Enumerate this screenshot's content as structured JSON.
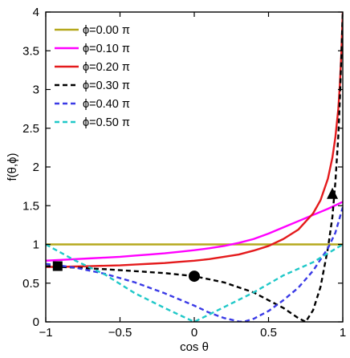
{
  "chart_data": {
    "type": "line",
    "xlabel": "cos θ",
    "ylabel": "f(θ,ϕ)",
    "xlim": [
      -1,
      1
    ],
    "ylim": [
      0,
      4
    ],
    "x_ticks": [
      -1,
      -0.5,
      0,
      0.5,
      1
    ],
    "x_tick_labels": [
      "−1",
      "−0.5",
      "0",
      "0.5",
      "1"
    ],
    "y_ticks": [
      0,
      0.5,
      1,
      1.5,
      2,
      2.5,
      3,
      3.5,
      4
    ],
    "y_tick_labels": [
      "0",
      "0.5",
      "1",
      "1.5",
      "2",
      "2.5",
      "3",
      "3.5",
      "4"
    ],
    "legend_position": "top-left",
    "grid": false,
    "series": [
      {
        "name": "ϕ=0.00 π",
        "color": "#b5a81d",
        "dash": "solid",
        "x": [
          -1,
          1
        ],
        "y": [
          1.0,
          1.0
        ]
      },
      {
        "name": "ϕ=0.10 π",
        "color": "#ff00ff",
        "dash": "solid",
        "x": [
          -1,
          -0.9,
          -0.8,
          -0.7,
          -0.6,
          -0.5,
          -0.4,
          -0.3,
          -0.2,
          -0.1,
          0,
          0.1,
          0.2,
          0.3,
          0.4,
          0.5,
          0.6,
          0.7,
          0.8,
          0.9,
          1.0
        ],
        "y": [
          0.79,
          0.8,
          0.81,
          0.82,
          0.83,
          0.84,
          0.855,
          0.87,
          0.885,
          0.905,
          0.925,
          0.95,
          0.98,
          1.02,
          1.07,
          1.14,
          1.22,
          1.3,
          1.38,
          1.46,
          1.55
        ]
      },
      {
        "name": "ϕ=0.20 π",
        "color": "#e41a1c",
        "dash": "solid",
        "x": [
          -1,
          -0.9,
          -0.8,
          -0.7,
          -0.6,
          -0.5,
          -0.4,
          -0.3,
          -0.2,
          -0.1,
          0,
          0.1,
          0.2,
          0.3,
          0.4,
          0.5,
          0.6,
          0.7,
          0.8,
          0.85,
          0.9,
          0.93,
          0.95,
          0.97,
          0.98,
          0.99,
          1.0
        ],
        "y": [
          0.71,
          0.71,
          0.715,
          0.72,
          0.725,
          0.73,
          0.74,
          0.75,
          0.76,
          0.775,
          0.79,
          0.81,
          0.84,
          0.87,
          0.92,
          0.98,
          1.07,
          1.19,
          1.4,
          1.57,
          1.85,
          2.12,
          2.38,
          2.75,
          3.05,
          3.45,
          4.0
        ]
      },
      {
        "name": "ϕ=0.30 π",
        "color": "#000000",
        "dash": "dashed",
        "x": [
          -1,
          -0.9,
          -0.8,
          -0.6,
          -0.4,
          -0.2,
          0,
          0.2,
          0.4,
          0.6,
          0.7,
          0.75,
          0.8,
          0.85,
          0.9,
          0.93,
          0.95,
          0.97,
          0.98,
          0.99,
          1.0
        ],
        "y": [
          0.72,
          0.71,
          0.7,
          0.68,
          0.655,
          0.63,
          0.59,
          0.51,
          0.38,
          0.18,
          0.05,
          0.0,
          0.15,
          0.45,
          0.95,
          1.35,
          1.8,
          2.4,
          2.85,
          3.4,
          4.0
        ]
      },
      {
        "name": "ϕ=0.40 π",
        "color": "#3a3ae6",
        "dash": "dashed",
        "x": [
          -1,
          -0.8,
          -0.6,
          -0.4,
          -0.2,
          0,
          0.1,
          0.2,
          0.3,
          0.33,
          0.4,
          0.5,
          0.6,
          0.7,
          0.8,
          0.9,
          0.95,
          1.0
        ],
        "y": [
          0.75,
          0.7,
          0.62,
          0.51,
          0.37,
          0.21,
          0.12,
          0.05,
          0.005,
          0.0,
          0.04,
          0.14,
          0.28,
          0.44,
          0.66,
          0.95,
          1.15,
          1.48
        ]
      },
      {
        "name": "ϕ=0.50 π",
        "color": "#20c8c8",
        "dash": "dashed",
        "x": [
          -1,
          -0.8,
          -0.6,
          -0.4,
          -0.2,
          0,
          0.2,
          0.4,
          0.6,
          0.8,
          1.0
        ],
        "y": [
          1.0,
          0.79,
          0.61,
          0.37,
          0.18,
          0.0,
          0.19,
          0.38,
          0.6,
          0.77,
          1.0
        ]
      }
    ],
    "markers": [
      {
        "shape": "square",
        "x": -0.92,
        "y": 0.72
      },
      {
        "shape": "circle",
        "x": 0.0,
        "y": 0.59
      },
      {
        "shape": "triangle",
        "x": 0.93,
        "y": 1.65
      }
    ]
  }
}
